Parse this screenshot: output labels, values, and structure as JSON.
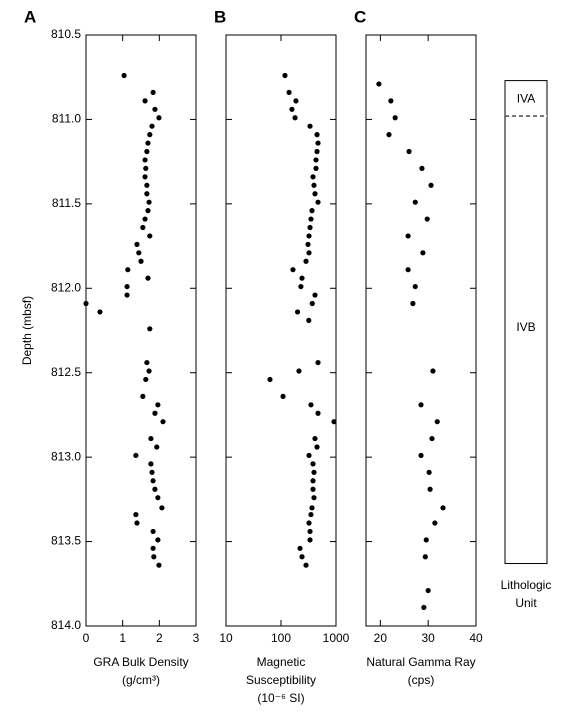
{
  "chart_data": [
    {
      "type": "scatter",
      "panel_label": "A",
      "xlabel": [
        "GRA Bulk Density",
        "(g/cm³)"
      ],
      "ylabel": "Depth (mbsf)",
      "xlim": [
        0,
        3
      ],
      "xticks": [
        0,
        1,
        2,
        3
      ],
      "ylim": [
        810.5,
        814
      ],
      "y_inverted": true,
      "yticks": [
        {
          "value": 810.5,
          "label": "810.5"
        },
        {
          "value": 811,
          "label": "811.0"
        },
        {
          "value": 811.5,
          "label": "811.5"
        },
        {
          "value": 812,
          "label": "812.0"
        },
        {
          "value": 812.5,
          "label": "812.5"
        },
        {
          "value": 813,
          "label": "813.0"
        },
        {
          "value": 813.5,
          "label": "813.5"
        },
        {
          "value": 814,
          "label": "814.0"
        }
      ],
      "color": "#000000",
      "x": [
        1.04,
        1.83,
        1.61,
        1.88,
        1.99,
        1.8,
        1.74,
        1.69,
        1.66,
        1.61,
        1.63,
        1.61,
        1.66,
        1.66,
        1.72,
        1.69,
        1.61,
        1.55,
        1.74,
        1.39,
        1.44,
        1.5,
        1.14,
        1.69,
        1.12,
        1.12,
        0,
        0.38,
        1.74,
        1.66,
        1.72,
        1.63,
        1.55,
        1.96,
        1.88,
        2.1,
        1.77,
        1.93,
        1.36,
        1.77,
        1.8,
        1.83,
        1.88,
        1.96,
        2.07,
        1.36,
        1.39,
        1.83,
        1.96,
        1.83,
        1.85,
        1.99
      ],
      "y": [
        810.74,
        810.84,
        810.89,
        810.94,
        810.99,
        811.04,
        811.09,
        811.14,
        811.19,
        811.24,
        811.29,
        811.34,
        811.39,
        811.44,
        811.49,
        811.54,
        811.59,
        811.64,
        811.69,
        811.74,
        811.79,
        811.84,
        811.89,
        811.94,
        811.99,
        812.04,
        812.09,
        812.14,
        812.24,
        812.44,
        812.49,
        812.54,
        812.64,
        812.69,
        812.74,
        812.79,
        812.89,
        812.94,
        812.99,
        813.04,
        813.09,
        813.14,
        813.19,
        813.24,
        813.3,
        813.34,
        813.39,
        813.44,
        813.49,
        813.54,
        813.59,
        813.64
      ]
    },
    {
      "type": "scatter",
      "panel_label": "B",
      "xlabel": [
        "Magnetic",
        "Susceptibility",
        "(10⁻⁶ SI)"
      ],
      "x_log": true,
      "xlim": [
        10,
        1000
      ],
      "xticks": [
        10,
        100,
        1000
      ],
      "ylim": [
        810.5,
        814
      ],
      "y_inverted": true,
      "yticks": [
        810.5,
        811,
        811.5,
        812,
        812.5,
        813,
        813.5,
        814
      ],
      "color": "#000000",
      "x": [
        118,
        140,
        187,
        158,
        180,
        337,
        452,
        471,
        452,
        433,
        433,
        382,
        398,
        415,
        471,
        366,
        351,
        337,
        323,
        310,
        323,
        285,
        165,
        241,
        230,
        415,
        370,
        200,
        320,
        471,
        212,
        63,
        109,
        351,
        471,
        920,
        415,
        452,
        323,
        382,
        398,
        382,
        382,
        398,
        366,
        351,
        323,
        337,
        337,
        222,
        241,
        285
      ],
      "y": [
        810.74,
        810.84,
        810.89,
        810.94,
        810.99,
        811.04,
        811.09,
        811.14,
        811.19,
        811.24,
        811.29,
        811.34,
        811.39,
        811.44,
        811.49,
        811.54,
        811.59,
        811.64,
        811.69,
        811.74,
        811.79,
        811.84,
        811.89,
        811.94,
        811.99,
        812.04,
        812.09,
        812.14,
        812.19,
        812.44,
        812.49,
        812.54,
        812.64,
        812.69,
        812.74,
        812.79,
        812.89,
        812.94,
        812.99,
        813.04,
        813.09,
        813.14,
        813.19,
        813.24,
        813.3,
        813.34,
        813.39,
        813.44,
        813.49,
        813.54,
        813.59,
        813.64
      ]
    },
    {
      "type": "scatter",
      "panel_label": "C",
      "xlabel": [
        "Natural Gamma Ray",
        "(cps)"
      ],
      "xlim": [
        17,
        40
      ],
      "xticks": [
        20,
        30,
        40
      ],
      "ylim": [
        810.5,
        814
      ],
      "y_inverted": true,
      "yticks": [
        810.5,
        811,
        811.5,
        812,
        812.5,
        813,
        813.5,
        814
      ],
      "color": "#000000",
      "x": [
        19.7,
        22.2,
        23.1,
        21.8,
        26.0,
        28.7,
        30.6,
        27.3,
        29.8,
        25.8,
        28.9,
        25.8,
        27.3,
        26.8,
        31.0,
        28.5,
        31.9,
        30.8,
        28.5,
        30.2,
        30.4,
        33.1,
        31.4,
        29.6,
        29.4,
        30.0,
        29.1
      ],
      "y": [
        810.79,
        810.89,
        810.99,
        811.09,
        811.19,
        811.29,
        811.39,
        811.49,
        811.59,
        811.69,
        811.79,
        811.89,
        811.99,
        812.09,
        812.49,
        812.69,
        812.79,
        812.89,
        812.99,
        813.09,
        813.19,
        813.3,
        813.39,
        813.49,
        813.59,
        813.79,
        813.89
      ]
    }
  ],
  "lithology": {
    "label_lines": [
      "Lithologic",
      "Unit"
    ],
    "units": [
      {
        "label": "IVA",
        "top": 810.77,
        "bottom": 810.98
      },
      {
        "label": "IVB",
        "top": 810.98,
        "bottom": 813.63
      }
    ]
  }
}
